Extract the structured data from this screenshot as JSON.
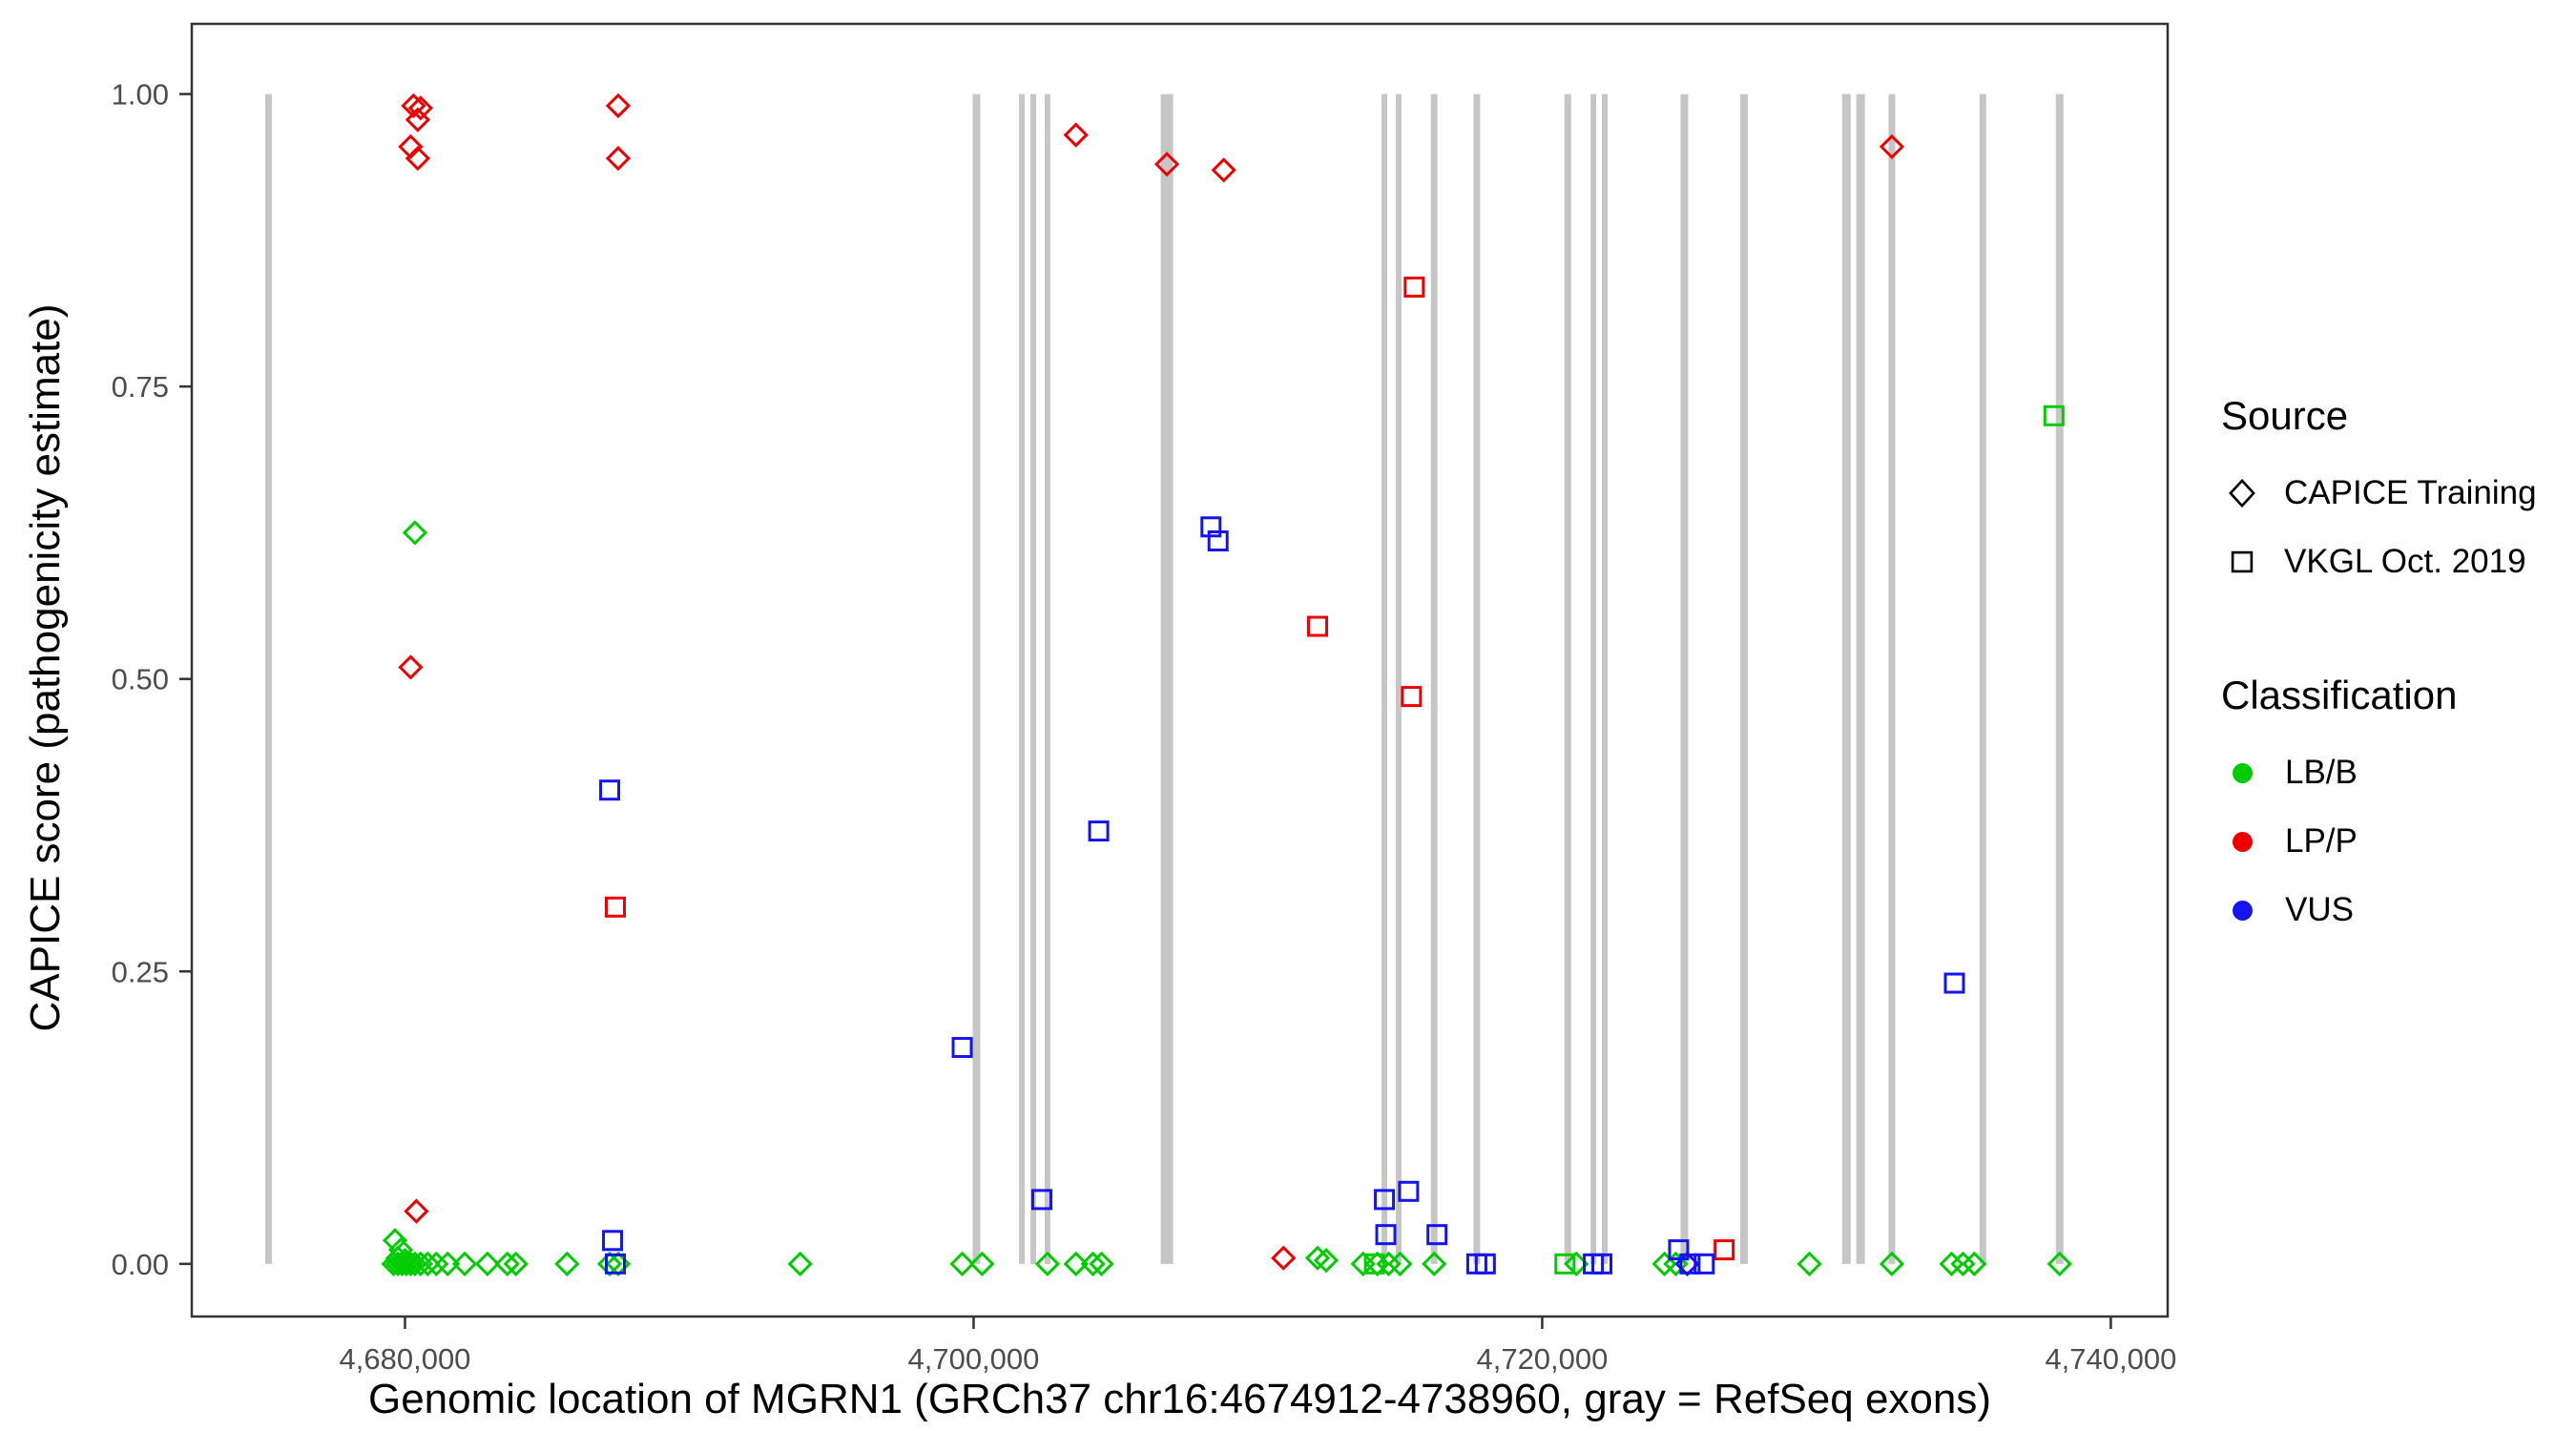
{
  "chart_data": {
    "type": "scatter",
    "title": "",
    "xlabel": "Genomic location of MGRN1 (GRCh37 chr16:4674912-4738960, gray = RefSeq exons)",
    "ylabel": "CAPICE score (pathogenicity estimate)",
    "xlim": [
      4672500,
      4742000
    ],
    "ylim": [
      -0.045,
      1.06
    ],
    "grid": false,
    "legend_position": "right",
    "x_ticks": [
      {
        "value": 4680000,
        "label": "4,680,000"
      },
      {
        "value": 4700000,
        "label": "4,700,000"
      },
      {
        "value": 4720000,
        "label": "4,720,000"
      },
      {
        "value": 4740000,
        "label": "4,740,000"
      }
    ],
    "y_ticks": [
      {
        "value": 0.0,
        "label": "0.00"
      },
      {
        "value": 0.25,
        "label": "0.25"
      },
      {
        "value": 0.5,
        "label": "0.50"
      },
      {
        "value": 0.75,
        "label": "0.75"
      },
      {
        "value": 1.0,
        "label": "1.00"
      }
    ],
    "colors": {
      "LB/B": "#00CD00",
      "LP/P": "#EE0000",
      "VUS": "#1414EE",
      "exon": "#C6C6C6",
      "axis": "#333333",
      "tick_label": "#4D4D4D"
    },
    "exons": [
      {
        "x": 4675200,
        "w": 7
      },
      {
        "x": 4700100,
        "w": 8
      },
      {
        "x": 4701700,
        "w": 6
      },
      {
        "x": 4702100,
        "w": 6
      },
      {
        "x": 4702600,
        "w": 6
      },
      {
        "x": 4706800,
        "w": 13
      },
      {
        "x": 4714450,
        "w": 6
      },
      {
        "x": 4714950,
        "w": 6
      },
      {
        "x": 4716200,
        "w": 7
      },
      {
        "x": 4717700,
        "w": 7
      },
      {
        "x": 4720900,
        "w": 7
      },
      {
        "x": 4721800,
        "w": 6
      },
      {
        "x": 4722200,
        "w": 6
      },
      {
        "x": 4725000,
        "w": 8
      },
      {
        "x": 4727100,
        "w": 8
      },
      {
        "x": 4730700,
        "w": 9
      },
      {
        "x": 4731200,
        "w": 9
      },
      {
        "x": 4732300,
        "w": 7
      },
      {
        "x": 4735500,
        "w": 7
      },
      {
        "x": 4738200,
        "w": 8
      }
    ],
    "series": [
      {
        "name": "CAPICE Training LP/P",
        "source": "CAPICE Training",
        "classification": "LP/P",
        "marker": "diamond",
        "points": [
          [
            4680300,
            0.99
          ],
          [
            4680550,
            0.988
          ],
          [
            4680450,
            0.978
          ],
          [
            4680200,
            0.955
          ],
          [
            4680450,
            0.945
          ],
          [
            4687500,
            0.99
          ],
          [
            4687500,
            0.945
          ],
          [
            4703600,
            0.965
          ],
          [
            4706800,
            0.94
          ],
          [
            4708800,
            0.935
          ],
          [
            4732300,
            0.955
          ],
          [
            4680200,
            0.51
          ],
          [
            4680400,
            0.045
          ],
          [
            4710900,
            0.005
          ]
        ]
      },
      {
        "name": "CAPICE Training LB/B",
        "source": "CAPICE Training",
        "classification": "LB/B",
        "marker": "diamond",
        "points": [
          [
            4680350,
            0.625
          ],
          [
            4679650,
            0.02
          ],
          [
            4679850,
            0.012
          ],
          [
            4679750,
            0.005
          ],
          [
            4680000,
            0.003
          ],
          [
            4679600,
            0.0
          ],
          [
            4679750,
            0.0
          ],
          [
            4679900,
            0.0
          ],
          [
            4680050,
            0.0
          ],
          [
            4680200,
            0.0
          ],
          [
            4680350,
            0.0
          ],
          [
            4680550,
            0.0
          ],
          [
            4680800,
            0.0
          ],
          [
            4681100,
            0.0
          ],
          [
            4681500,
            0.0
          ],
          [
            4682100,
            0.0
          ],
          [
            4682900,
            0.0
          ],
          [
            4683600,
            0.0
          ],
          [
            4683900,
            0.0
          ],
          [
            4685700,
            0.0
          ],
          [
            4687200,
            0.0
          ],
          [
            4687500,
            0.0
          ],
          [
            4693900,
            0.0
          ],
          [
            4699600,
            0.0
          ],
          [
            4700300,
            0.0
          ],
          [
            4702600,
            0.0
          ],
          [
            4703600,
            0.0
          ],
          [
            4704200,
            0.0
          ],
          [
            4704500,
            0.0
          ],
          [
            4712100,
            0.005
          ],
          [
            4712400,
            0.003
          ],
          [
            4713700,
            0.0
          ],
          [
            4714200,
            0.0
          ],
          [
            4714600,
            0.0
          ],
          [
            4715000,
            0.0
          ],
          [
            4716200,
            0.0
          ],
          [
            4721200,
            0.0
          ],
          [
            4724300,
            0.0
          ],
          [
            4724700,
            0.0
          ],
          [
            4729400,
            0.0
          ],
          [
            4732300,
            0.0
          ],
          [
            4734400,
            0.0
          ],
          [
            4734800,
            0.0
          ],
          [
            4735200,
            0.0
          ],
          [
            4738200,
            0.0
          ]
        ]
      },
      {
        "name": "CAPICE Training VUS",
        "source": "CAPICE Training",
        "classification": "VUS",
        "marker": "diamond",
        "points": [
          [
            4725100,
            0.0
          ]
        ]
      },
      {
        "name": "VKGL Oct. 2019 LP/P",
        "source": "VKGL Oct. 2019",
        "classification": "LP/P",
        "marker": "square",
        "points": [
          [
            4715500,
            0.835
          ],
          [
            4712100,
            0.545
          ],
          [
            4715400,
            0.485
          ],
          [
            4687400,
            0.305
          ],
          [
            4726400,
            0.012
          ]
        ]
      },
      {
        "name": "VKGL Oct. 2019 LB/B",
        "source": "VKGL Oct. 2019",
        "classification": "LB/B",
        "marker": "square",
        "points": [
          [
            4738000,
            0.725
          ],
          [
            4714100,
            0.0
          ],
          [
            4720800,
            0.0
          ]
        ]
      },
      {
        "name": "VKGL Oct. 2019 VUS",
        "source": "VKGL Oct. 2019",
        "classification": "VUS",
        "marker": "square",
        "points": [
          [
            4708350,
            0.63
          ],
          [
            4708600,
            0.618
          ],
          [
            4687200,
            0.405
          ],
          [
            4704400,
            0.37
          ],
          [
            4734500,
            0.24
          ],
          [
            4699600,
            0.185
          ],
          [
            4715300,
            0.062
          ],
          [
            4702400,
            0.055
          ],
          [
            4714450,
            0.055
          ],
          [
            4714500,
            0.025
          ],
          [
            4716300,
            0.025
          ],
          [
            4687300,
            0.02
          ],
          [
            4687400,
            0.0
          ],
          [
            4717700,
            0.0
          ],
          [
            4718000,
            0.0
          ],
          [
            4721800,
            0.0
          ],
          [
            4722100,
            0.0
          ],
          [
            4724800,
            0.012
          ],
          [
            4725200,
            0.0
          ],
          [
            4725700,
            0.0
          ]
        ]
      }
    ],
    "legend": {
      "source": {
        "title": "Source",
        "items": [
          {
            "label": "CAPICE Training",
            "marker": "diamond"
          },
          {
            "label": "VKGL Oct. 2019",
            "marker": "square"
          }
        ]
      },
      "classification": {
        "title": "Classification",
        "items": [
          {
            "label": "LB/B",
            "color": "#00CD00"
          },
          {
            "label": "LP/P",
            "color": "#EE0000"
          },
          {
            "label": "VUS",
            "color": "#1414EE"
          }
        ]
      }
    }
  }
}
